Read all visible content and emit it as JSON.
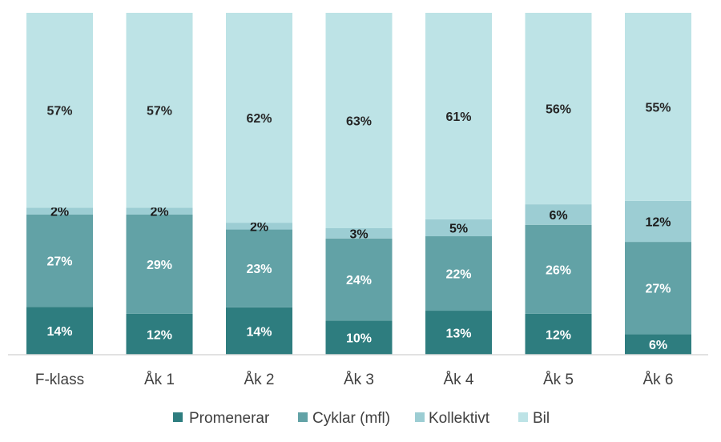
{
  "chart_data": {
    "type": "bar",
    "stacked": true,
    "normalized_percent": true,
    "categories": [
      "F-klass",
      "Åk 1",
      "Åk 2",
      "Åk 3",
      "Åk 4",
      "Åk 5",
      "Åk 6"
    ],
    "series": [
      {
        "name": "Promenerar",
        "color": "#2e7d7f",
        "label_color": "#ffffff",
        "values": [
          14,
          12,
          14,
          10,
          13,
          12,
          6
        ],
        "labels": [
          "14%",
          "12%",
          "14%",
          "10%",
          "13%",
          "12%",
          "6%"
        ]
      },
      {
        "name": "Cyklar (mfl)",
        "color": "#62a2a6",
        "label_color": "#ffffff",
        "values": [
          27,
          29,
          23,
          24,
          22,
          26,
          27
        ],
        "labels": [
          "27%",
          "29%",
          "23%",
          "24%",
          "22%",
          "26%",
          "27%"
        ]
      },
      {
        "name": "Kollektivt",
        "color": "#9ccdd3",
        "label_color": "#1a1a1a",
        "values": [
          2,
          2,
          2,
          3,
          5,
          6,
          12
        ],
        "labels": [
          "2%",
          "2%",
          "2%",
          "3%",
          "5%",
          "6%",
          "12%"
        ]
      },
      {
        "name": "Bil",
        "color": "#bde3e6",
        "label_color": "#262626",
        "values": [
          57,
          57,
          62,
          63,
          61,
          56,
          55
        ],
        "labels": [
          "57%",
          "57%",
          "62%",
          "63%",
          "61%",
          "56%",
          "55%"
        ]
      }
    ],
    "ylim": [
      0,
      100
    ],
    "grid": false,
    "legend_position": "bottom"
  }
}
